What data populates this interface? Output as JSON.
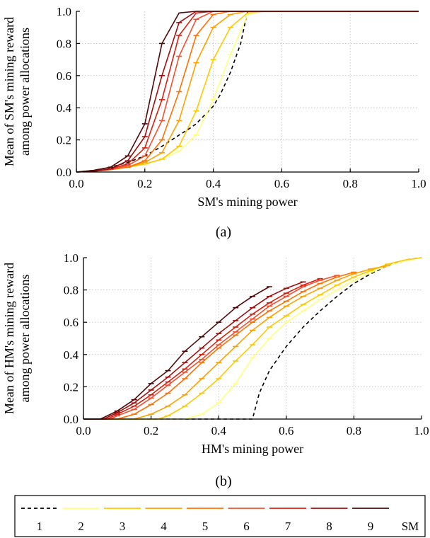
{
  "chart_data": [
    {
      "type": "line",
      "caption": "(a)",
      "xlabel": "SM's mining power",
      "ylabel": [
        "Mean of SM's mining reward",
        "among power allocations"
      ],
      "xlim": [
        0,
        1
      ],
      "ylim": [
        0,
        1
      ],
      "xticks": [
        "0.0",
        "0.2",
        "0.4",
        "0.6",
        "0.8",
        "1.0"
      ],
      "yticks": [
        "0.0",
        "0.2",
        "0.4",
        "0.6",
        "0.8",
        "1.0"
      ],
      "grid": true,
      "series": [
        {
          "name": "1",
          "color": "#000000",
          "dashed": true,
          "x": [
            0,
            0.05,
            0.1,
            0.15,
            0.2,
            0.25,
            0.3,
            0.33,
            0.35,
            0.4,
            0.42,
            0.45,
            0.48,
            0.5,
            0.55,
            1.0
          ],
          "y": [
            0,
            0.01,
            0.03,
            0.06,
            0.1,
            0.16,
            0.23,
            0.27,
            0.3,
            0.41,
            0.48,
            0.62,
            0.8,
            1.0,
            1.0,
            1.0
          ]
        },
        {
          "name": "2",
          "color": "#ffff80",
          "x": [
            0,
            0.05,
            0.1,
            0.15,
            0.2,
            0.25,
            0.3,
            0.35,
            0.4,
            0.45,
            0.5,
            0.55,
            1.0
          ],
          "y": [
            0,
            0.005,
            0.015,
            0.03,
            0.05,
            0.08,
            0.13,
            0.23,
            0.45,
            0.73,
            0.98,
            1.0,
            1.0
          ]
        },
        {
          "name": "3",
          "color": "#ffc800",
          "x": [
            0,
            0.05,
            0.1,
            0.15,
            0.2,
            0.25,
            0.3,
            0.35,
            0.4,
            0.45,
            0.5,
            0.55,
            1.0
          ],
          "y": [
            0,
            0.005,
            0.015,
            0.03,
            0.05,
            0.08,
            0.16,
            0.38,
            0.7,
            0.9,
            0.99,
            1.0,
            1.0
          ]
        },
        {
          "name": "4",
          "color": "#ffa000",
          "x": [
            0,
            0.05,
            0.1,
            0.15,
            0.2,
            0.25,
            0.3,
            0.35,
            0.4,
            0.45,
            0.5,
            1.0
          ],
          "y": [
            0,
            0.005,
            0.015,
            0.03,
            0.06,
            0.12,
            0.32,
            0.68,
            0.9,
            0.98,
            1.0,
            1.0
          ]
        },
        {
          "name": "5",
          "color": "#ff7000",
          "x": [
            0,
            0.05,
            0.1,
            0.15,
            0.2,
            0.25,
            0.3,
            0.35,
            0.4,
            0.45,
            0.5,
            1.0
          ],
          "y": [
            0,
            0.005,
            0.015,
            0.03,
            0.07,
            0.2,
            0.5,
            0.85,
            0.98,
            1.0,
            1.0,
            1.0
          ]
        },
        {
          "name": "6",
          "color": "#f05030",
          "x": [
            0,
            0.05,
            0.1,
            0.15,
            0.2,
            0.25,
            0.3,
            0.35,
            0.4,
            0.45,
            1.0
          ],
          "y": [
            0,
            0.005,
            0.015,
            0.04,
            0.1,
            0.32,
            0.72,
            0.95,
            1.0,
            1.0,
            1.0
          ]
        },
        {
          "name": "7",
          "color": "#d82010",
          "x": [
            0,
            0.05,
            0.1,
            0.15,
            0.2,
            0.25,
            0.3,
            0.35,
            0.4,
            1.0
          ],
          "y": [
            0,
            0.005,
            0.02,
            0.05,
            0.15,
            0.45,
            0.85,
            0.99,
            1.0,
            1.0
          ]
        },
        {
          "name": "8",
          "color": "#a00e0e",
          "x": [
            0,
            0.05,
            0.1,
            0.15,
            0.2,
            0.25,
            0.3,
            0.35,
            0.4,
            1.0
          ],
          "y": [
            0,
            0.005,
            0.02,
            0.07,
            0.22,
            0.6,
            0.93,
            1.0,
            1.0,
            1.0
          ]
        },
        {
          "name": "9",
          "color": "#500808",
          "x": [
            0,
            0.05,
            0.1,
            0.15,
            0.2,
            0.25,
            0.3,
            0.35,
            1.0
          ],
          "y": [
            0,
            0.01,
            0.03,
            0.1,
            0.3,
            0.8,
            0.99,
            1.0,
            1.0
          ]
        }
      ]
    },
    {
      "type": "line",
      "caption": "(b)",
      "xlabel": "HM's mining power",
      "ylabel": [
        "Mean of HM's mining reward",
        "among power allocations"
      ],
      "xlim": [
        0,
        1
      ],
      "ylim": [
        0,
        1
      ],
      "xticks": [
        "0.0",
        "0.2",
        "0.4",
        "0.6",
        "0.8",
        "1.0"
      ],
      "yticks": [
        "0.0",
        "0.2",
        "0.4",
        "0.6",
        "0.8",
        "1.0"
      ],
      "grid": true,
      "series": [
        {
          "name": "1",
          "color": "#000000",
          "dashed": true,
          "x": [
            0,
            0.48,
            0.5,
            0.52,
            0.55,
            0.6,
            0.65,
            0.7,
            0.75,
            0.8,
            0.85,
            0.9,
            0.95,
            1.0
          ],
          "y": [
            0,
            0,
            0,
            0.16,
            0.3,
            0.45,
            0.57,
            0.67,
            0.76,
            0.84,
            0.9,
            0.95,
            0.985,
            1.0
          ]
        },
        {
          "name": "2",
          "color": "#ffff80",
          "x": [
            0,
            0.3,
            0.35,
            0.4,
            0.45,
            0.5,
            0.55,
            0.6,
            0.65,
            0.7,
            0.75,
            0.8,
            0.85,
            0.9,
            0.95,
            1.0
          ],
          "y": [
            0,
            0,
            0.03,
            0.1,
            0.22,
            0.38,
            0.5,
            0.6,
            0.67,
            0.74,
            0.8,
            0.86,
            0.91,
            0.95,
            0.98,
            1.0
          ]
        },
        {
          "name": "3",
          "color": "#ffc800",
          "x": [
            0,
            0.22,
            0.25,
            0.3,
            0.35,
            0.4,
            0.45,
            0.5,
            0.55,
            0.6,
            0.65,
            0.7,
            0.75,
            0.8,
            0.85,
            0.9,
            0.95,
            1.0
          ],
          "y": [
            0,
            0,
            0.02,
            0.08,
            0.16,
            0.25,
            0.36,
            0.46,
            0.57,
            0.64,
            0.71,
            0.77,
            0.83,
            0.88,
            0.92,
            0.96,
            0.985,
            1.0
          ]
        },
        {
          "name": "4",
          "color": "#ffa000",
          "x": [
            0,
            0.15,
            0.2,
            0.25,
            0.3,
            0.35,
            0.4,
            0.45,
            0.5,
            0.55,
            0.6,
            0.65,
            0.7,
            0.75,
            0.8,
            0.85,
            0.9
          ],
          "y": [
            0,
            0,
            0.03,
            0.08,
            0.15,
            0.25,
            0.35,
            0.45,
            0.55,
            0.63,
            0.7,
            0.76,
            0.81,
            0.86,
            0.9,
            0.93,
            0.95
          ]
        },
        {
          "name": "5",
          "color": "#ff7000",
          "x": [
            0,
            0.1,
            0.15,
            0.2,
            0.25,
            0.3,
            0.35,
            0.4,
            0.45,
            0.5,
            0.55,
            0.6,
            0.65,
            0.7,
            0.75,
            0.8
          ],
          "y": [
            0,
            0,
            0.03,
            0.09,
            0.16,
            0.25,
            0.35,
            0.44,
            0.52,
            0.6,
            0.67,
            0.73,
            0.79,
            0.84,
            0.88,
            0.91
          ]
        },
        {
          "name": "6",
          "color": "#f05030",
          "x": [
            0,
            0.08,
            0.1,
            0.15,
            0.2,
            0.25,
            0.3,
            0.35,
            0.4,
            0.45,
            0.5,
            0.55,
            0.6,
            0.65,
            0.7,
            0.75
          ],
          "y": [
            0,
            0,
            0.02,
            0.06,
            0.13,
            0.21,
            0.29,
            0.37,
            0.46,
            0.54,
            0.62,
            0.7,
            0.76,
            0.82,
            0.86,
            0.89
          ]
        },
        {
          "name": "7",
          "color": "#d82010",
          "x": [
            0,
            0.07,
            0.1,
            0.15,
            0.2,
            0.25,
            0.3,
            0.35,
            0.4,
            0.45,
            0.5,
            0.55,
            0.6,
            0.65,
            0.7
          ],
          "y": [
            0,
            0,
            0.03,
            0.08,
            0.15,
            0.23,
            0.31,
            0.4,
            0.49,
            0.57,
            0.65,
            0.72,
            0.78,
            0.83,
            0.87
          ]
        },
        {
          "name": "8",
          "color": "#a00e0e",
          "x": [
            0,
            0.06,
            0.1,
            0.15,
            0.2,
            0.25,
            0.3,
            0.35,
            0.4,
            0.45,
            0.5,
            0.55,
            0.6,
            0.65
          ],
          "y": [
            0,
            0,
            0.04,
            0.1,
            0.18,
            0.26,
            0.35,
            0.44,
            0.53,
            0.61,
            0.69,
            0.76,
            0.81,
            0.85
          ]
        },
        {
          "name": "9",
          "color": "#500808",
          "x": [
            0,
            0.05,
            0.1,
            0.15,
            0.2,
            0.25,
            0.3,
            0.35,
            0.4,
            0.45,
            0.5,
            0.55
          ],
          "y": [
            0,
            0,
            0.05,
            0.12,
            0.22,
            0.3,
            0.42,
            0.51,
            0.6,
            0.69,
            0.76,
            0.82
          ]
        }
      ]
    }
  ],
  "legend": {
    "entries": [
      {
        "label": "1",
        "color": "#000000",
        "dashed": true
      },
      {
        "label": "2",
        "color": "#ffff80",
        "dashed": false
      },
      {
        "label": "3",
        "color": "#ffc800",
        "dashed": false
      },
      {
        "label": "4",
        "color": "#ffa000",
        "dashed": false
      },
      {
        "label": "5",
        "color": "#ff7000",
        "dashed": false
      },
      {
        "label": "6",
        "color": "#f05030",
        "dashed": false
      },
      {
        "label": "7",
        "color": "#d82010",
        "dashed": false
      },
      {
        "label": "8",
        "color": "#a00e0e",
        "dashed": false
      },
      {
        "label": "9",
        "color": "#500808",
        "dashed": false
      }
    ],
    "trailing_label": "SM"
  }
}
